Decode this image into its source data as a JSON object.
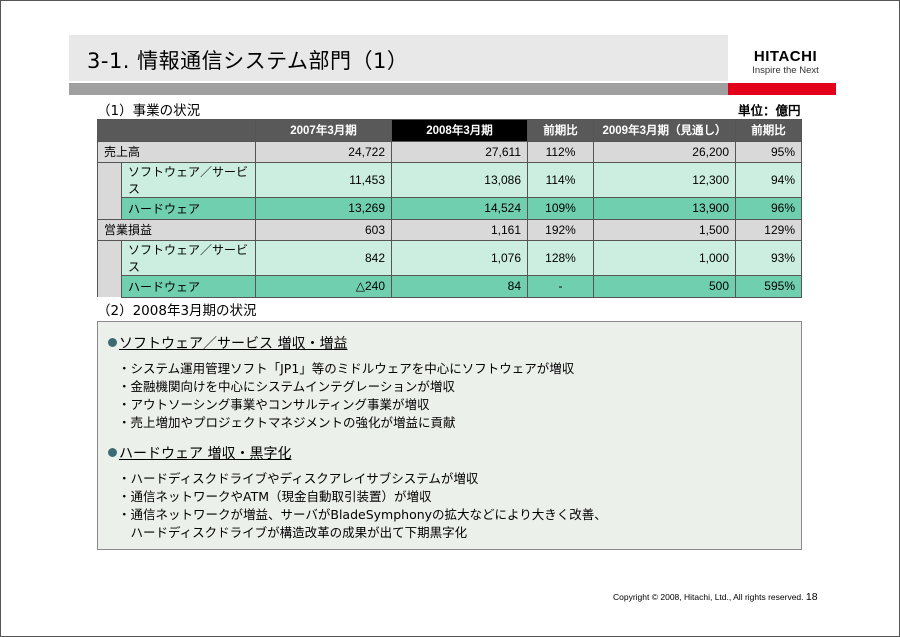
{
  "title": "3-1. 情報通信システム部門（1）",
  "logo": {
    "brand": "HITACHI",
    "tagline": "Inspire the Next"
  },
  "section1": {
    "heading": "（1）事業の状況",
    "unit": "単位：億円"
  },
  "table": {
    "headers": [
      "2007年3月期",
      "2008年3月期",
      "前期比",
      "2009年3月期（見通し）",
      "前期比"
    ],
    "rows": [
      {
        "label": "売上高",
        "values": [
          "24,722",
          "27,611",
          "112%",
          "26,200",
          "95%"
        ]
      },
      {
        "label": "ソフトウェア／サービス",
        "values": [
          "11,453",
          "13,086",
          "114%",
          "12,300",
          "94%"
        ]
      },
      {
        "label": "ハードウェア",
        "values": [
          "13,269",
          "14,524",
          "109%",
          "13,900",
          "96%"
        ]
      },
      {
        "label": "営業損益",
        "values": [
          "603",
          "1,161",
          "192%",
          "1,500",
          "129%"
        ]
      },
      {
        "label": "ソフトウェア／サービス",
        "values": [
          "842",
          "1,076",
          "128%",
          "1,000",
          "93%"
        ]
      },
      {
        "label": "ハードウェア",
        "values": [
          "△240",
          "84",
          "-",
          "500",
          "595%"
        ]
      }
    ]
  },
  "section2": {
    "heading": "（2）2008年3月期の状況",
    "blocks": [
      {
        "title": "ソフトウェア／サービス 増収・増益",
        "items": [
          "・システム運用管理ソフト「JP1」等のミドルウェアを中心にソフトウェアが増収",
          "・金融機関向けを中心にシステムインテグレーションが増収",
          "・アウトソーシング事業やコンサルティング事業が増収",
          "・売上増加やプロジェクトマネジメントの強化が増益に貢献"
        ]
      },
      {
        "title": "ハードウェア 増収・黒字化",
        "items": [
          "・ハードディスクドライブやディスクアレイサブシステムが増収",
          "・通信ネットワークやATM（現金自動取引装置）が増収",
          "・通信ネットワークが増益、サーバがBladeSymphonyの拡大などにより大きく改善、",
          "　ハードディスクドライブが構造改革の成果が出て下期黒字化"
        ]
      }
    ]
  },
  "footer": {
    "copyright": "Copyright © 2008, Hitachi, Ltd., All rights reserved.",
    "page": "18"
  }
}
